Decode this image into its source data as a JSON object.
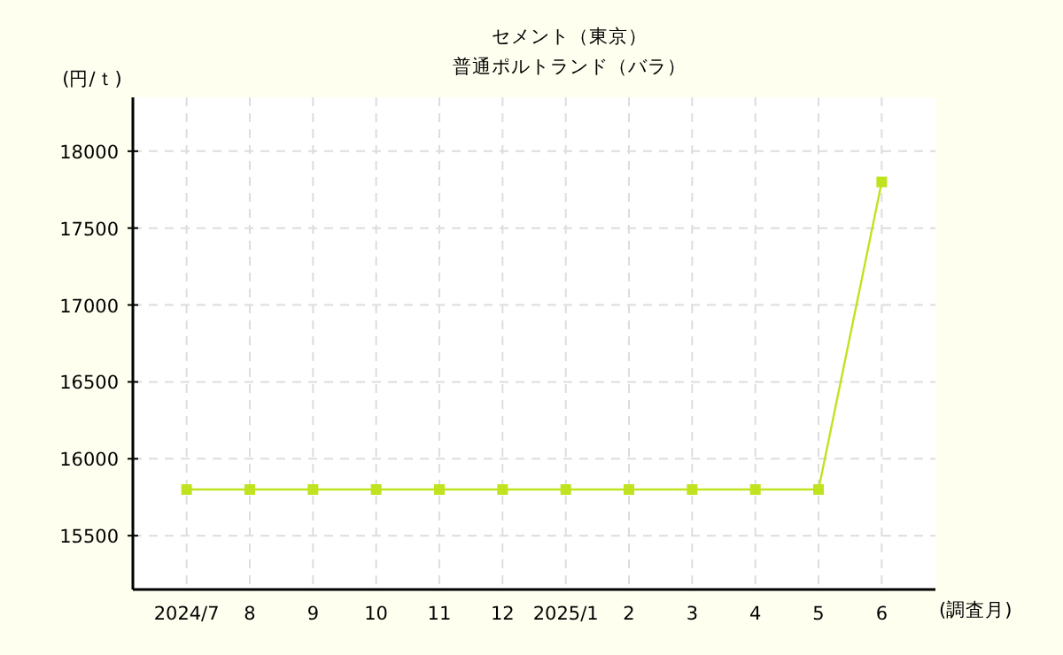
{
  "chart_data": {
    "type": "line",
    "title": "セメント（東京）",
    "subtitle": "普通ポルトランド（バラ）",
    "ylabel": "(円/ｔ)",
    "xlabel": "(調査月)",
    "categories": [
      "2024/7",
      "8",
      "9",
      "10",
      "11",
      "12",
      "2025/1",
      "2",
      "3",
      "4",
      "5",
      "6"
    ],
    "series": [
      {
        "color": "#bfe31f",
        "values": [
          15800,
          15800,
          15800,
          15800,
          15800,
          15800,
          15800,
          15800,
          15800,
          15800,
          15800,
          17800
        ]
      }
    ],
    "ylim": [
      15150,
      18350
    ],
    "yticks": [
      15500,
      16000,
      16500,
      17000,
      17500,
      18000
    ],
    "grid": true,
    "marker": "square",
    "line_style": "solid"
  }
}
